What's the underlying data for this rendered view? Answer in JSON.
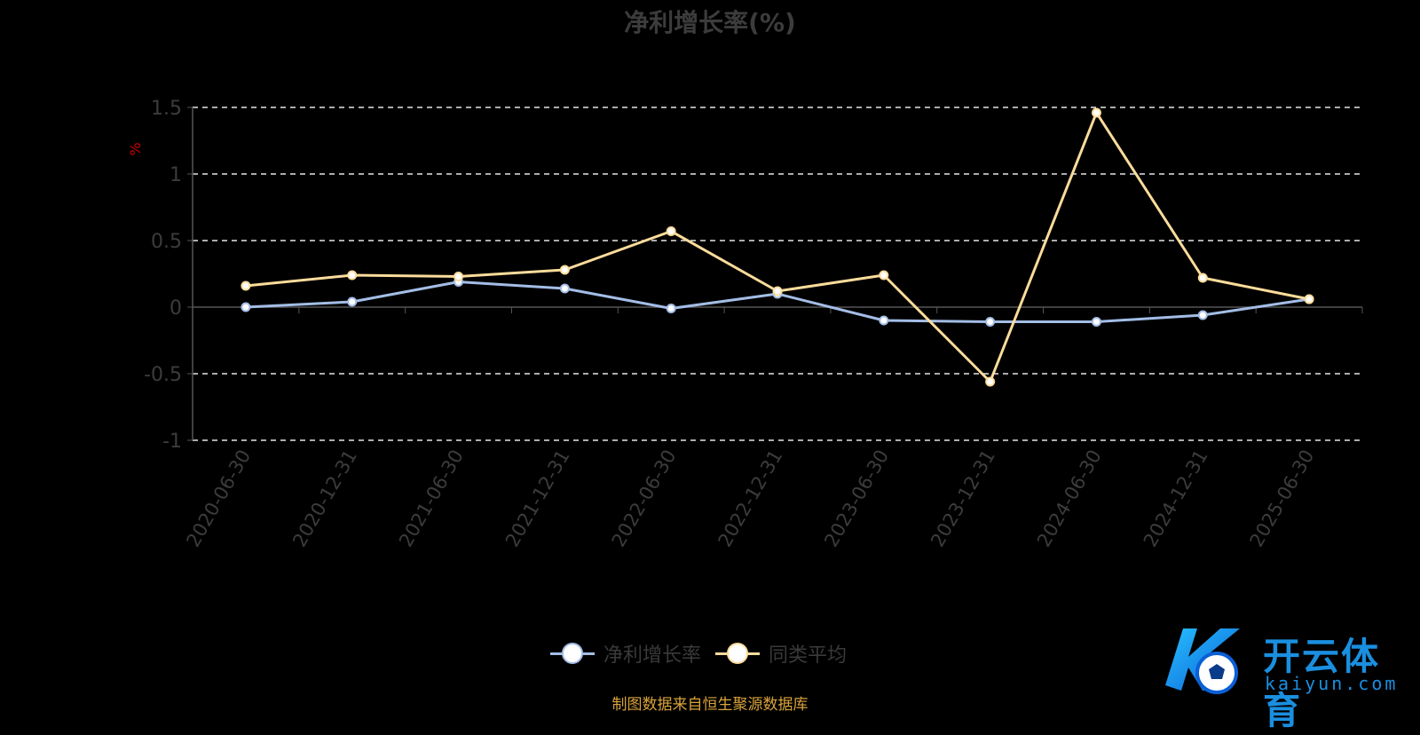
{
  "title": "净利增长率(%)",
  "source_note": "制图数据来自恒生聚源数据库",
  "logo": {
    "name": "开云体育",
    "sub": "kaiyun.com"
  },
  "colors": {
    "background": "#000000",
    "series1": "#a3bde6",
    "series2": "#fbdc9b",
    "unit": "#cc0000"
  },
  "chart_data": {
    "type": "line",
    "title": "净利增长率(%)",
    "ylabel": "%",
    "ylim": [
      -1,
      1.5
    ],
    "yticks": [
      "1.5",
      "1",
      "0.5",
      "0",
      "-0.5",
      "-1"
    ],
    "ytick_values": [
      1.5,
      1,
      0.5,
      0,
      -0.5,
      -1
    ],
    "categories": [
      "2020-06-30",
      "2020-12-31",
      "2021-06-30",
      "2021-12-31",
      "2022-06-30",
      "2022-12-31",
      "2023-06-30",
      "2023-12-31",
      "2024-06-30",
      "2024-12-31",
      "2025-06-30"
    ],
    "grid": true,
    "legend_position": "bottom",
    "series": [
      {
        "name": "净利增长率",
        "values": [
          0,
          0.04,
          0.19,
          0.14,
          -0.01,
          0.1,
          -0.1,
          -0.11,
          -0.11,
          -0.06,
          0.06
        ]
      },
      {
        "name": "同类平均",
        "values": [
          0.16,
          0.24,
          0.23,
          0.28,
          0.57,
          0.12,
          0.24,
          -0.56,
          1.46,
          0.22,
          0.06
        ]
      }
    ]
  }
}
